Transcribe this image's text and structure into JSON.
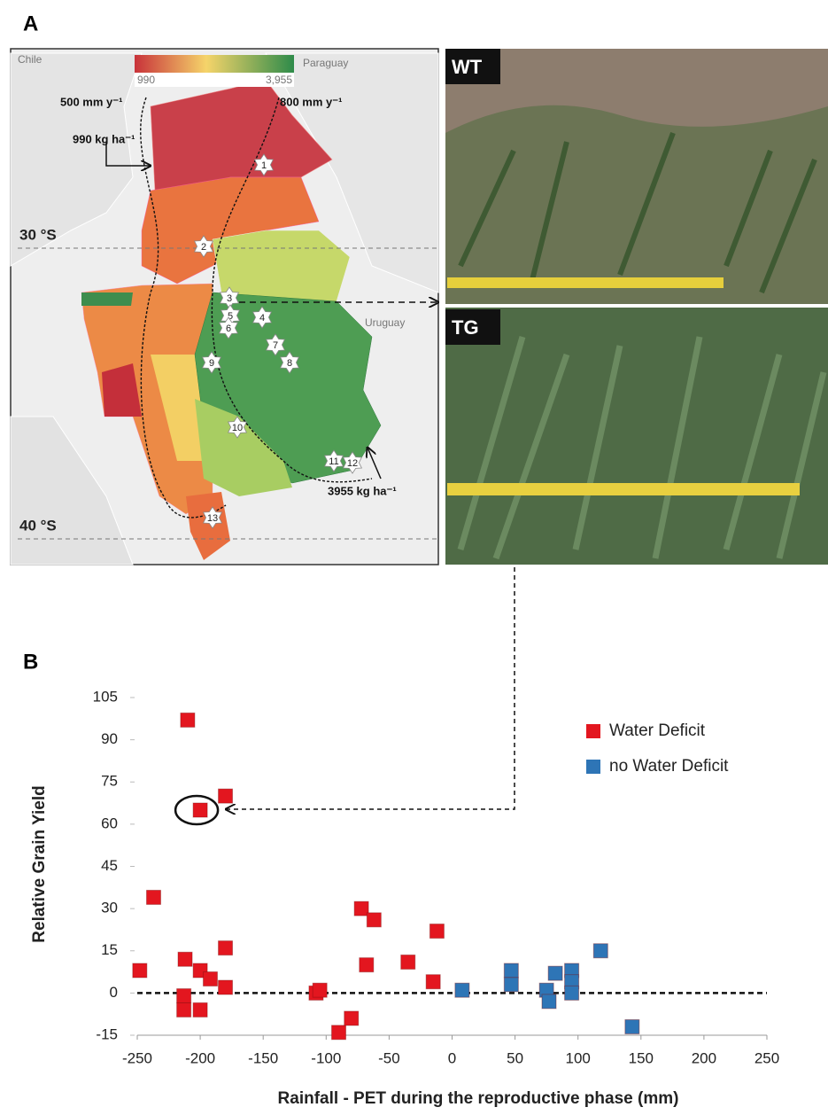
{
  "panel_a": {
    "label": "A",
    "map": {
      "countries": [
        "Chile",
        "Paraguay",
        "Uruguay"
      ],
      "scale_min": "990",
      "scale_max": "3,955",
      "isohyet_500": "500 mm y⁻¹",
      "isohyet_800": "800 mm y⁻¹",
      "min_yield": "990 kg ha⁻¹",
      "max_yield": "3955 kg ha⁻¹",
      "lat_30": "30 °S",
      "lat_40": "40 °S",
      "sites": [
        "1",
        "2",
        "3",
        "4",
        "5",
        "6",
        "7",
        "8",
        "9",
        "10",
        "11",
        "12",
        "13"
      ]
    },
    "photos": [
      "WT",
      "TG"
    ]
  },
  "panel_b": {
    "label": "B"
  },
  "chart_data": {
    "type": "scatter",
    "xlabel": "Rainfall - PET during the reproductive phase (mm)",
    "ylabel": "Relative Grain Yield",
    "xlim": [
      -250,
      250
    ],
    "xticks": [
      -250,
      -200,
      -150,
      -100,
      -50,
      0,
      50,
      100,
      150,
      200,
      250
    ],
    "ylim": [
      -15,
      105
    ],
    "yticks": [
      -15,
      0,
      15,
      30,
      45,
      60,
      75,
      90,
      105
    ],
    "legend": "upper right",
    "series": [
      {
        "name": "Water Deficit",
        "color": "#e3161f",
        "x": [
          -210,
          -180,
          -200,
          -237,
          -248,
          -212,
          -213,
          -213,
          -200,
          -192,
          -180,
          -180,
          -200,
          -108,
          -105,
          -90,
          -80,
          -72,
          -68,
          -62,
          -35,
          -15,
          -12
        ],
        "values": [
          97,
          70,
          65,
          34,
          8,
          12,
          -1,
          -6,
          8,
          5,
          16,
          2,
          -6,
          0,
          1,
          -14,
          -9,
          30,
          10,
          26,
          11,
          4,
          22
        ]
      },
      {
        "name": "no Water Deficit",
        "color": "#2e75b6",
        "x": [
          8,
          47,
          47,
          75,
          77,
          82,
          95,
          95,
          95,
          118,
          143
        ],
        "values": [
          1,
          8,
          3,
          1,
          -3,
          7,
          8,
          4,
          0,
          15,
          -12
        ]
      }
    ]
  }
}
